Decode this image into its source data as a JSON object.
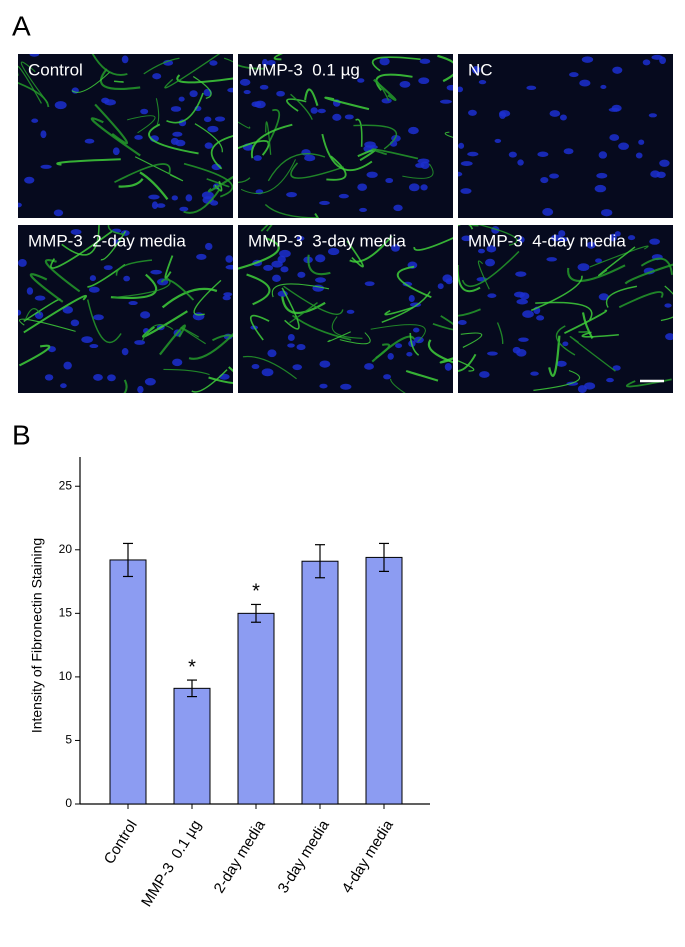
{
  "panel_a": {
    "label": "A",
    "panels": [
      "Control",
      "MMP-3  0.1 µg",
      "NC",
      "MMP-3  2-day media",
      "MMP-3  3-day media",
      "MMP-3  4-day media"
    ]
  },
  "chart_data": {
    "panel_label": "B",
    "type": "bar",
    "y_label": "Intensity of Fibronectin Staining",
    "categories": [
      "Control",
      "MMP-3  0.1 µg",
      "2-day media",
      "3-day media",
      "4-day media"
    ],
    "values": [
      19.2,
      9.1,
      15.0,
      19.1,
      19.4
    ],
    "errors": [
      1.3,
      0.65,
      0.7,
      1.3,
      1.1
    ],
    "significance": [
      null,
      "*",
      "*",
      null,
      null
    ],
    "color": "#8c9cf2",
    "ylim": [
      0,
      27.3
    ],
    "yticks": [
      0,
      5,
      10,
      15,
      20,
      25
    ]
  }
}
